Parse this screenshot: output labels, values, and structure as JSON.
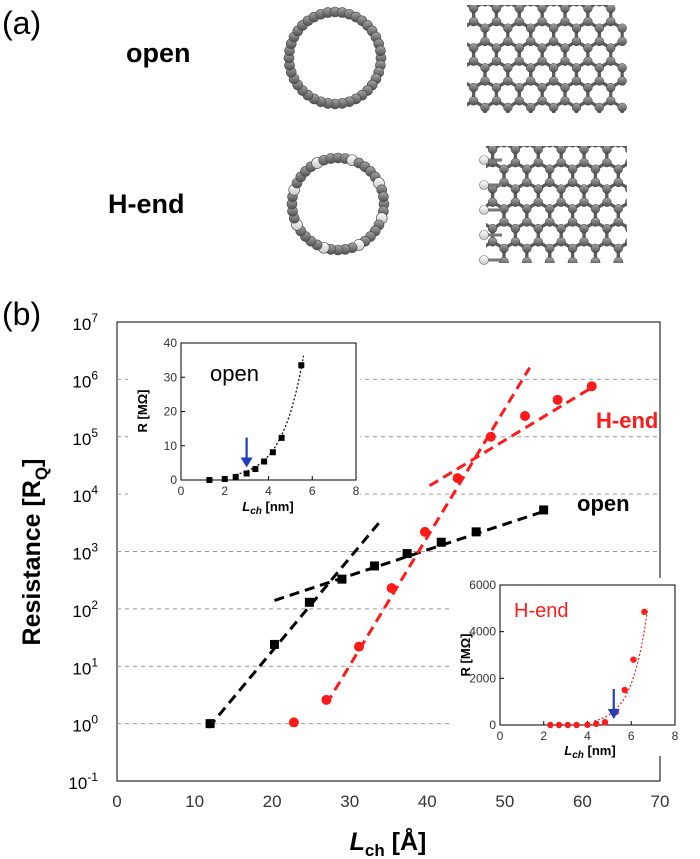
{
  "panel_a": {
    "label": "(a)",
    "rows": [
      {
        "label": "open"
      },
      {
        "label": "H-end"
      }
    ]
  },
  "panel_b": {
    "label": "(b)",
    "ylabel": "Resistance [R",
    "ylabel_sub": "Q",
    "ylabel_close": "]",
    "xlabel_main": "L",
    "xlabel_sub": "ch",
    "xlabel_unit": " [Å]",
    "series_labels": {
      "hend": "H-end",
      "open": "open"
    },
    "colors": {
      "open": "#000000",
      "hend": "#ff1a1a",
      "arrow": "#1f3fbf",
      "grid": "#9a9a9a"
    }
  },
  "chart_data": [
    {
      "type": "scatter",
      "title": "",
      "xlabel": "L_ch [Å]",
      "ylabel": "Resistance [R_Q]",
      "xlim": [
        0,
        70
      ],
      "ylim_exponent": [
        -1,
        7
      ],
      "yscale": "log",
      "xticks": [
        "0",
        "10",
        "20",
        "30",
        "40",
        "50",
        "60",
        "70"
      ],
      "yticks": [
        {
          "base": "10",
          "exp": "-1"
        },
        {
          "base": "10",
          "exp": "0"
        },
        {
          "base": "10",
          "exp": "1"
        },
        {
          "base": "10",
          "exp": "2"
        },
        {
          "base": "10",
          "exp": "3"
        },
        {
          "base": "10",
          "exp": "4"
        },
        {
          "base": "10",
          "exp": "5"
        },
        {
          "base": "10",
          "exp": "6"
        },
        {
          "base": "10",
          "exp": "7"
        }
      ],
      "grid": "horizontal dashed",
      "series": [
        {
          "name": "open",
          "marker": "square",
          "x": [
            12.0,
            20.3,
            24.8,
            29.0,
            33.2,
            37.4,
            41.8,
            46.3,
            55.0
          ],
          "y": [
            1.0,
            24.0,
            130.0,
            330.0,
            560.0,
            920.0,
            1450.0,
            2200.0,
            5300.0
          ],
          "fits": [
            {
              "x": [
                11.8,
                33.8
              ],
              "y": [
                0.85,
                3200
              ]
            },
            {
              "x": [
                20.3,
                55.0
              ],
              "y": [
                140,
                5000
              ]
            }
          ]
        },
        {
          "name": "H-end",
          "marker": "circle",
          "x": [
            22.8,
            27.0,
            31.2,
            35.4,
            39.7,
            43.9,
            48.2,
            52.6,
            56.8,
            61.2
          ],
          "y": [
            1.05,
            2.6,
            22.0,
            230.0,
            2200.0,
            19000.0,
            100000.0,
            230000.0,
            440000.0,
            760000.0
          ],
          "fits": [
            {
              "x": [
                27.0,
                53.2
              ],
              "y": [
                2.2,
                1600000
              ]
            },
            {
              "x": [
                40.3,
                61.5
              ],
              "y": [
                14000,
                760000
              ]
            }
          ]
        }
      ]
    },
    {
      "type": "scatter",
      "title": "",
      "annotation": "open",
      "xlabel": "L_ch [nm]",
      "ylabel": "R [MΩ]",
      "xlim": [
        0,
        8
      ],
      "ylim": [
        0,
        40
      ],
      "xticks": [
        "0",
        "2",
        "4",
        "6",
        "8"
      ],
      "yticks": [
        "0",
        "10",
        "20",
        "30",
        "40"
      ],
      "arrow_x": 3.0,
      "series": [
        {
          "name": "open",
          "x": [
            1.3,
            2.0,
            2.5,
            3.0,
            3.4,
            3.8,
            4.2,
            4.6,
            5.5
          ],
          "y": [
            0.0,
            0.3,
            0.9,
            1.9,
            3.2,
            5.4,
            8.1,
            12.3,
            33.5
          ]
        }
      ]
    },
    {
      "type": "scatter",
      "title": "",
      "annotation": "H-end",
      "xlabel": "L_ch [nm]",
      "ylabel": "R [MΩ]",
      "xlim": [
        0,
        8
      ],
      "ylim": [
        0,
        6000
      ],
      "xticks": [
        "0",
        "2",
        "4",
        "6",
        "8"
      ],
      "yticks": [
        "0",
        "2000",
        "4000",
        "6000"
      ],
      "arrow_x": 5.2,
      "series": [
        {
          "name": "H-end",
          "x": [
            2.3,
            2.7,
            3.1,
            3.5,
            4.0,
            4.4,
            4.8,
            5.3,
            5.7,
            6.1,
            6.6
          ],
          "y": [
            0,
            0,
            0,
            0,
            10,
            50,
            120,
            560,
            1500,
            2800,
            4850
          ]
        }
      ]
    }
  ]
}
